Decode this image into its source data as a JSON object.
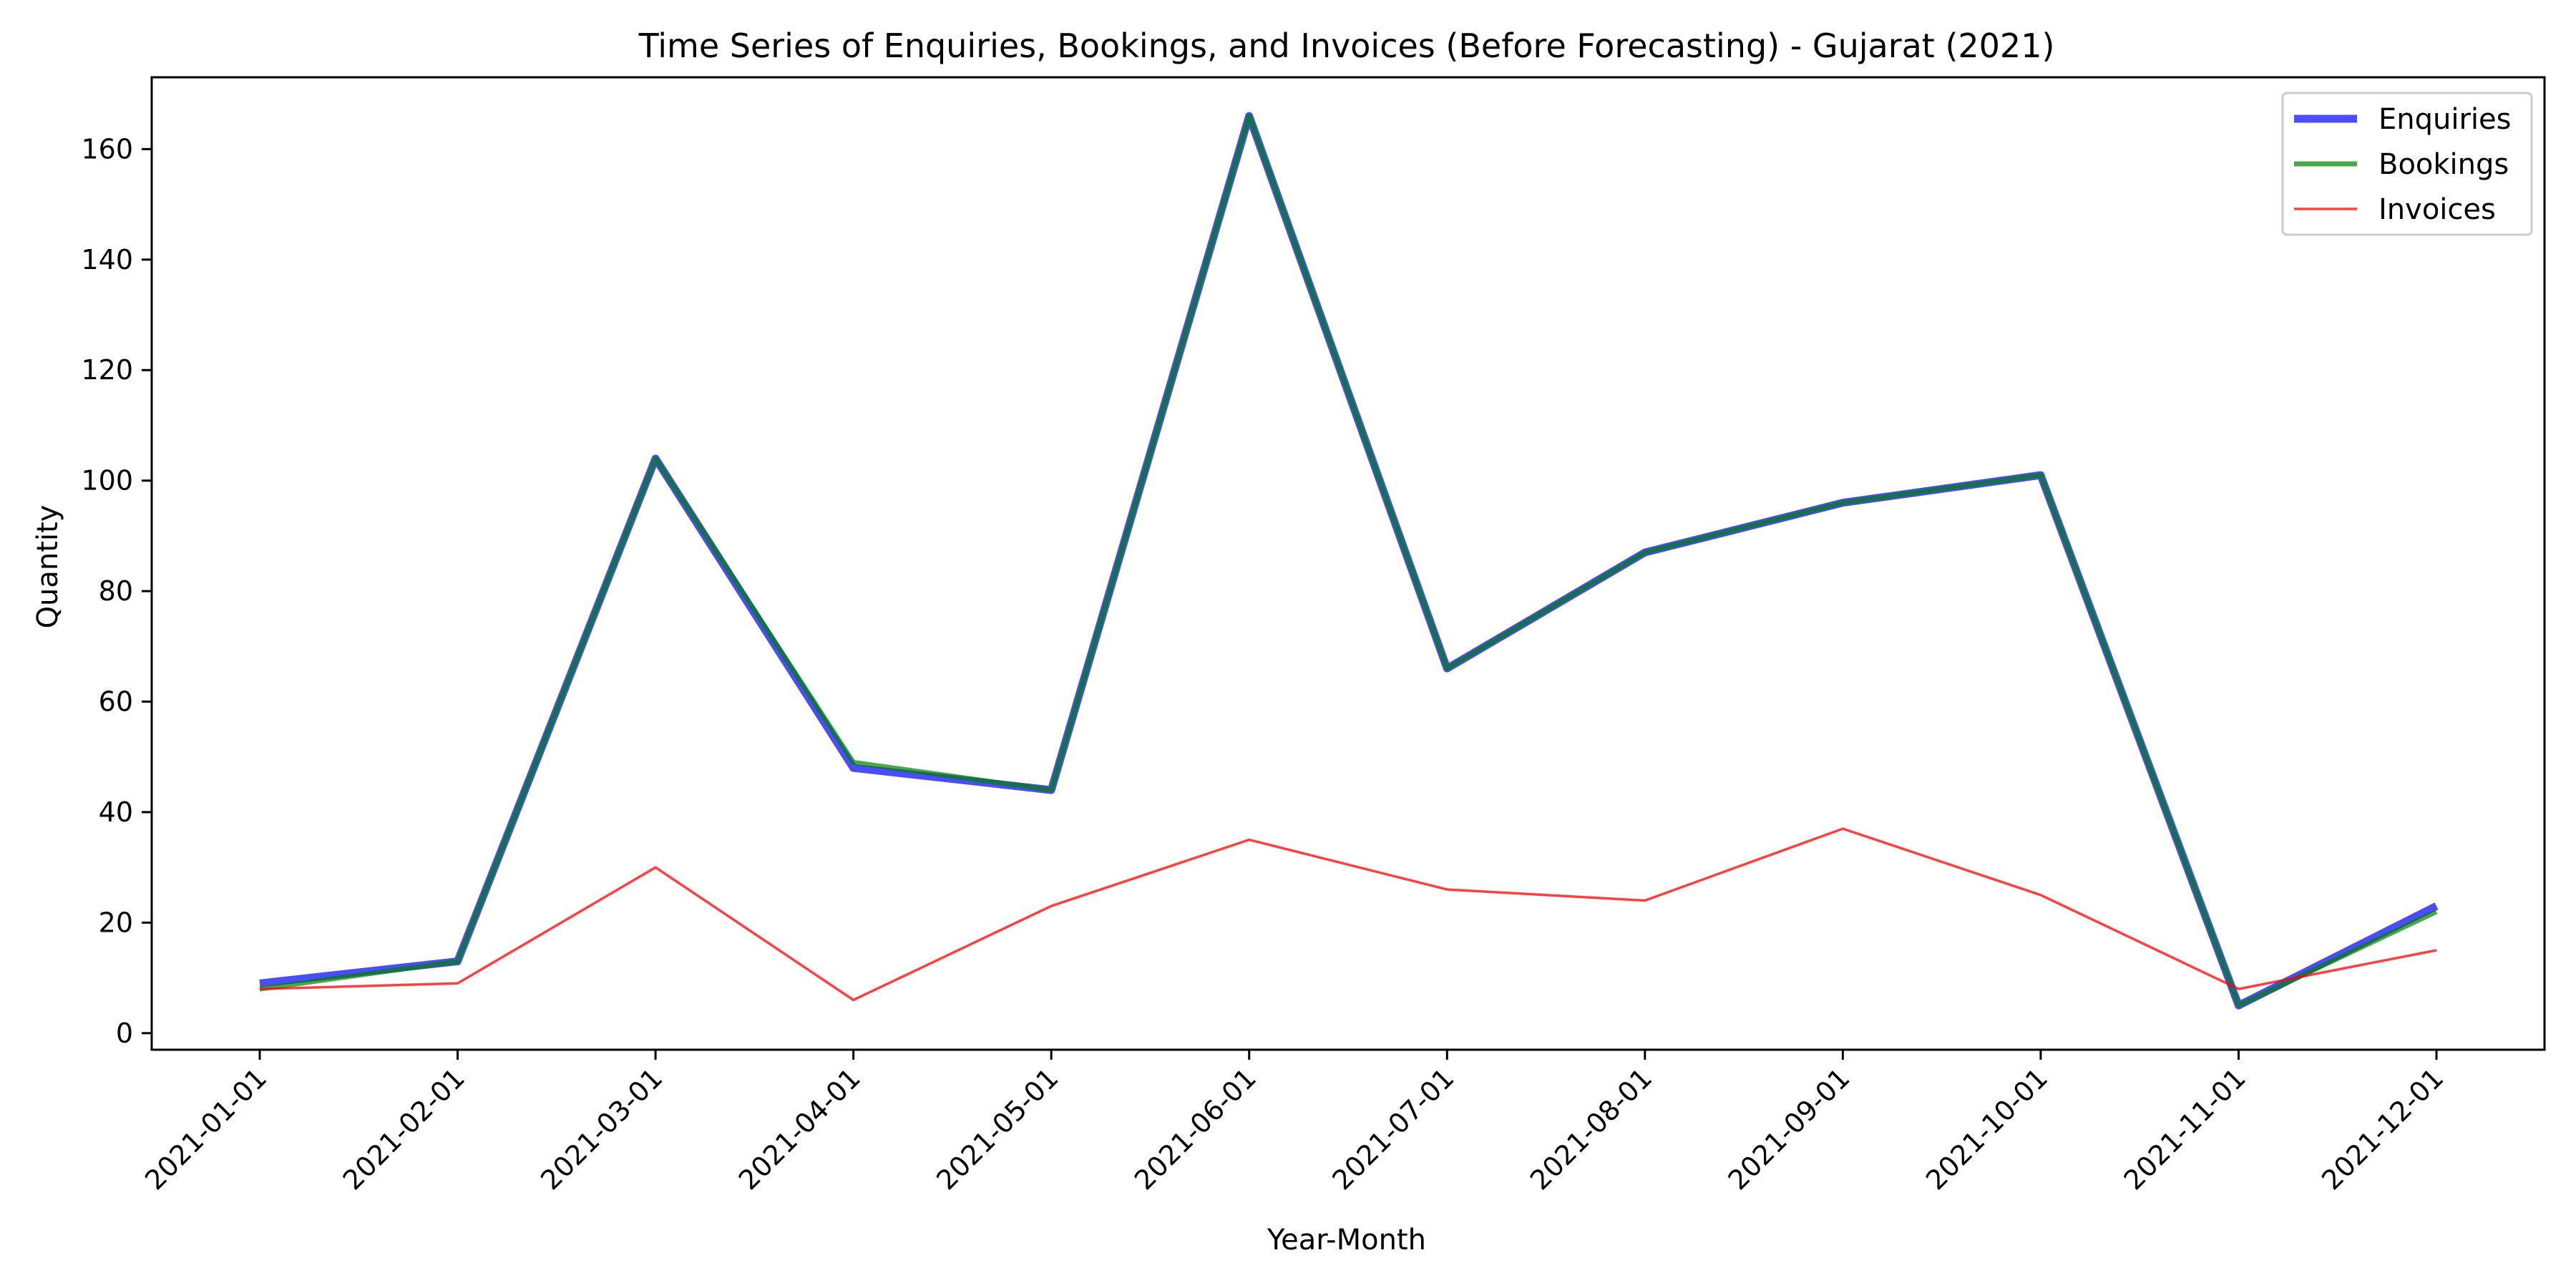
{
  "chart_data": {
    "type": "line",
    "title": "Time Series of Enquiries, Bookings, and Invoices (Before Forecasting) - Gujarat (2021)",
    "xlabel": "Year-Month",
    "ylabel": "Quantity",
    "categories": [
      "2021-01-01",
      "2021-02-01",
      "2021-03-01",
      "2021-04-01",
      "2021-05-01",
      "2021-06-01",
      "2021-07-01",
      "2021-08-01",
      "2021-09-01",
      "2021-10-01",
      "2021-11-01",
      "2021-12-01"
    ],
    "ylim": [
      -3,
      173
    ],
    "yticks": [
      0,
      20,
      40,
      60,
      80,
      100,
      120,
      140,
      160
    ],
    "grid": false,
    "legend_position": "top-right",
    "series": [
      {
        "name": "Enquiries",
        "color": "#0000ff",
        "values": [
          9,
          13,
          104,
          48,
          44,
          166,
          66,
          87,
          96,
          101,
          5,
          23
        ]
      },
      {
        "name": "Bookings",
        "color": "#008000",
        "values": [
          8,
          13,
          104,
          49,
          44,
          166,
          66,
          87,
          96,
          101,
          5,
          22
        ]
      },
      {
        "name": "Invoices",
        "color": "#ff0000",
        "values": [
          8,
          9,
          30,
          6,
          23,
          35,
          26,
          24,
          37,
          25,
          8,
          15
        ]
      }
    ]
  }
}
